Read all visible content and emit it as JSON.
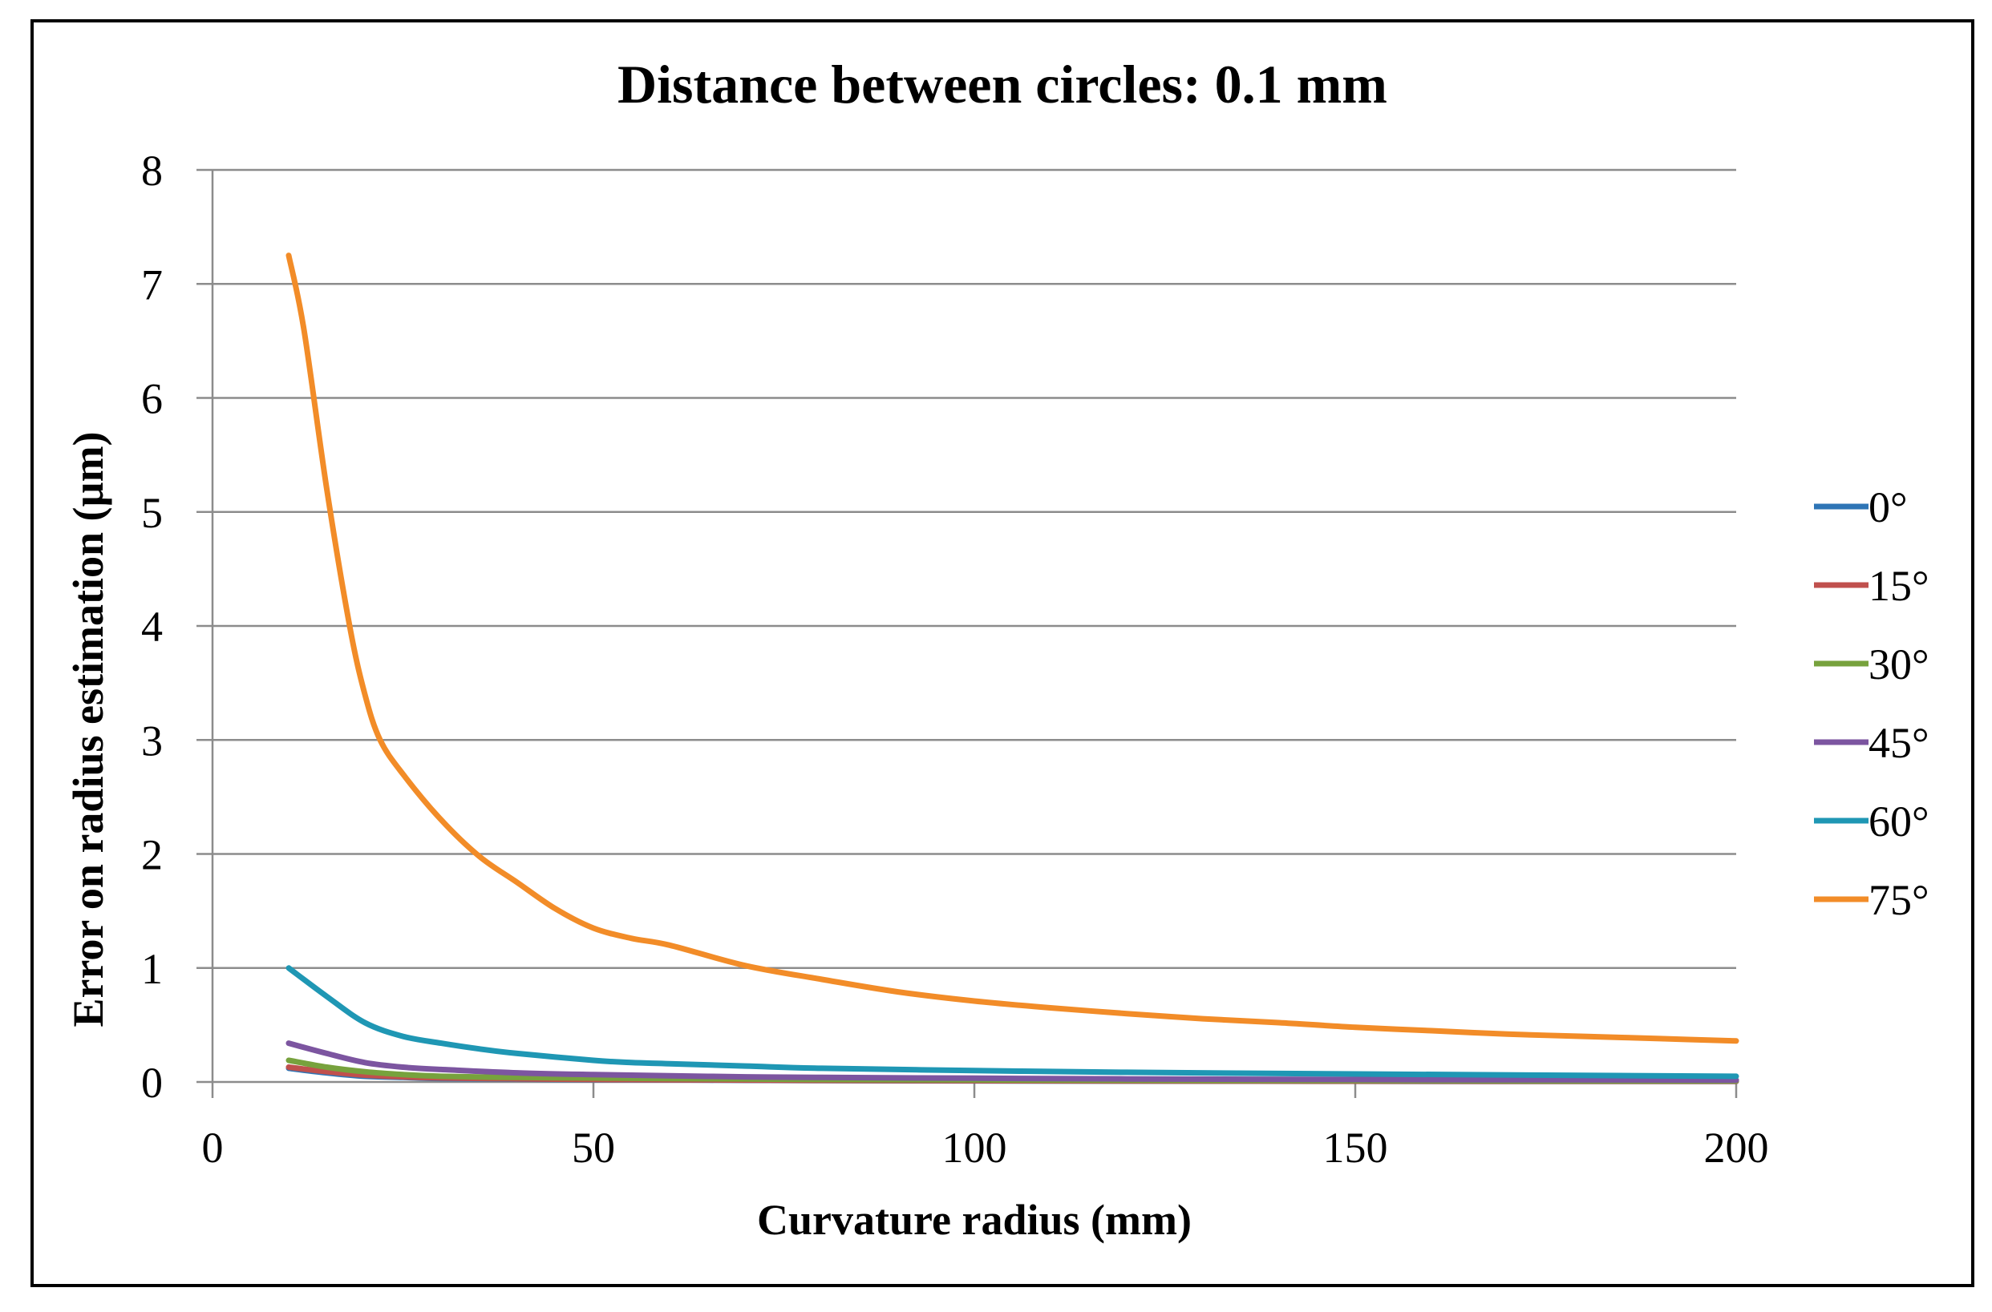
{
  "chart_data": {
    "type": "line",
    "title": "Distance between circles: 0.1 mm",
    "xlabel": "Curvature radius (mm)",
    "ylabel": "Error on radius estimation (µm)",
    "xlim": [
      0,
      200
    ],
    "ylim": [
      0,
      8
    ],
    "x_ticks": [
      0,
      50,
      100,
      150,
      200
    ],
    "y_ticks": [
      0,
      1,
      2,
      3,
      4,
      5,
      6,
      7,
      8
    ],
    "grid": "horizontal",
    "legend_position": "right",
    "series": [
      {
        "name": "0°",
        "color": "#2E75B6",
        "x": [
          10,
          15,
          20,
          25,
          30,
          40,
          50,
          60,
          70,
          80,
          100,
          120,
          150,
          175,
          200
        ],
        "y": [
          0.12,
          0.08,
          0.05,
          0.04,
          0.03,
          0.025,
          0.02,
          0.018,
          0.015,
          0.012,
          0.01,
          0.008,
          0.006,
          0.005,
          0.005
        ]
      },
      {
        "name": "15°",
        "color": "#C0504D",
        "x": [
          10,
          15,
          20,
          25,
          30,
          40,
          50,
          60,
          70,
          80,
          100,
          120,
          150,
          175,
          200
        ],
        "y": [
          0.13,
          0.09,
          0.06,
          0.045,
          0.035,
          0.028,
          0.022,
          0.02,
          0.017,
          0.014,
          0.011,
          0.009,
          0.007,
          0.006,
          0.006
        ]
      },
      {
        "name": "30°",
        "color": "#77A23D",
        "x": [
          10,
          15,
          20,
          25,
          30,
          40,
          50,
          60,
          70,
          80,
          100,
          120,
          150,
          175,
          200
        ],
        "y": [
          0.19,
          0.13,
          0.09,
          0.065,
          0.05,
          0.04,
          0.035,
          0.03,
          0.026,
          0.022,
          0.018,
          0.015,
          0.012,
          0.01,
          0.01
        ]
      },
      {
        "name": "45°",
        "color": "#7C55A0",
        "x": [
          10,
          15,
          20,
          25,
          30,
          40,
          50,
          60,
          70,
          80,
          100,
          120,
          150,
          175,
          200
        ],
        "y": [
          0.34,
          0.25,
          0.17,
          0.13,
          0.11,
          0.08,
          0.065,
          0.055,
          0.045,
          0.04,
          0.033,
          0.027,
          0.022,
          0.019,
          0.017
        ]
      },
      {
        "name": "60°",
        "color": "#1F97B4",
        "x": [
          10,
          15,
          20,
          25,
          30,
          35,
          40,
          50,
          55,
          60,
          70,
          80,
          100,
          120,
          150,
          175,
          200
        ],
        "y": [
          1.0,
          0.75,
          0.52,
          0.4,
          0.34,
          0.29,
          0.25,
          0.19,
          0.17,
          0.16,
          0.14,
          0.12,
          0.1,
          0.085,
          0.07,
          0.06,
          0.05
        ]
      },
      {
        "name": "75°",
        "color": "#F28C28",
        "x": [
          10,
          12,
          15,
          18,
          20,
          22,
          25,
          30,
          35,
          40,
          45,
          50,
          55,
          60,
          70,
          80,
          90,
          100,
          110,
          120,
          130,
          140,
          150,
          160,
          170,
          180,
          190,
          200
        ],
        "y": [
          7.25,
          6.6,
          5.2,
          4.0,
          3.4,
          3.0,
          2.7,
          2.3,
          1.98,
          1.75,
          1.52,
          1.35,
          1.26,
          1.2,
          1.02,
          0.9,
          0.79,
          0.71,
          0.65,
          0.6,
          0.555,
          0.52,
          0.48,
          0.45,
          0.42,
          0.4,
          0.38,
          0.36
        ]
      }
    ]
  }
}
